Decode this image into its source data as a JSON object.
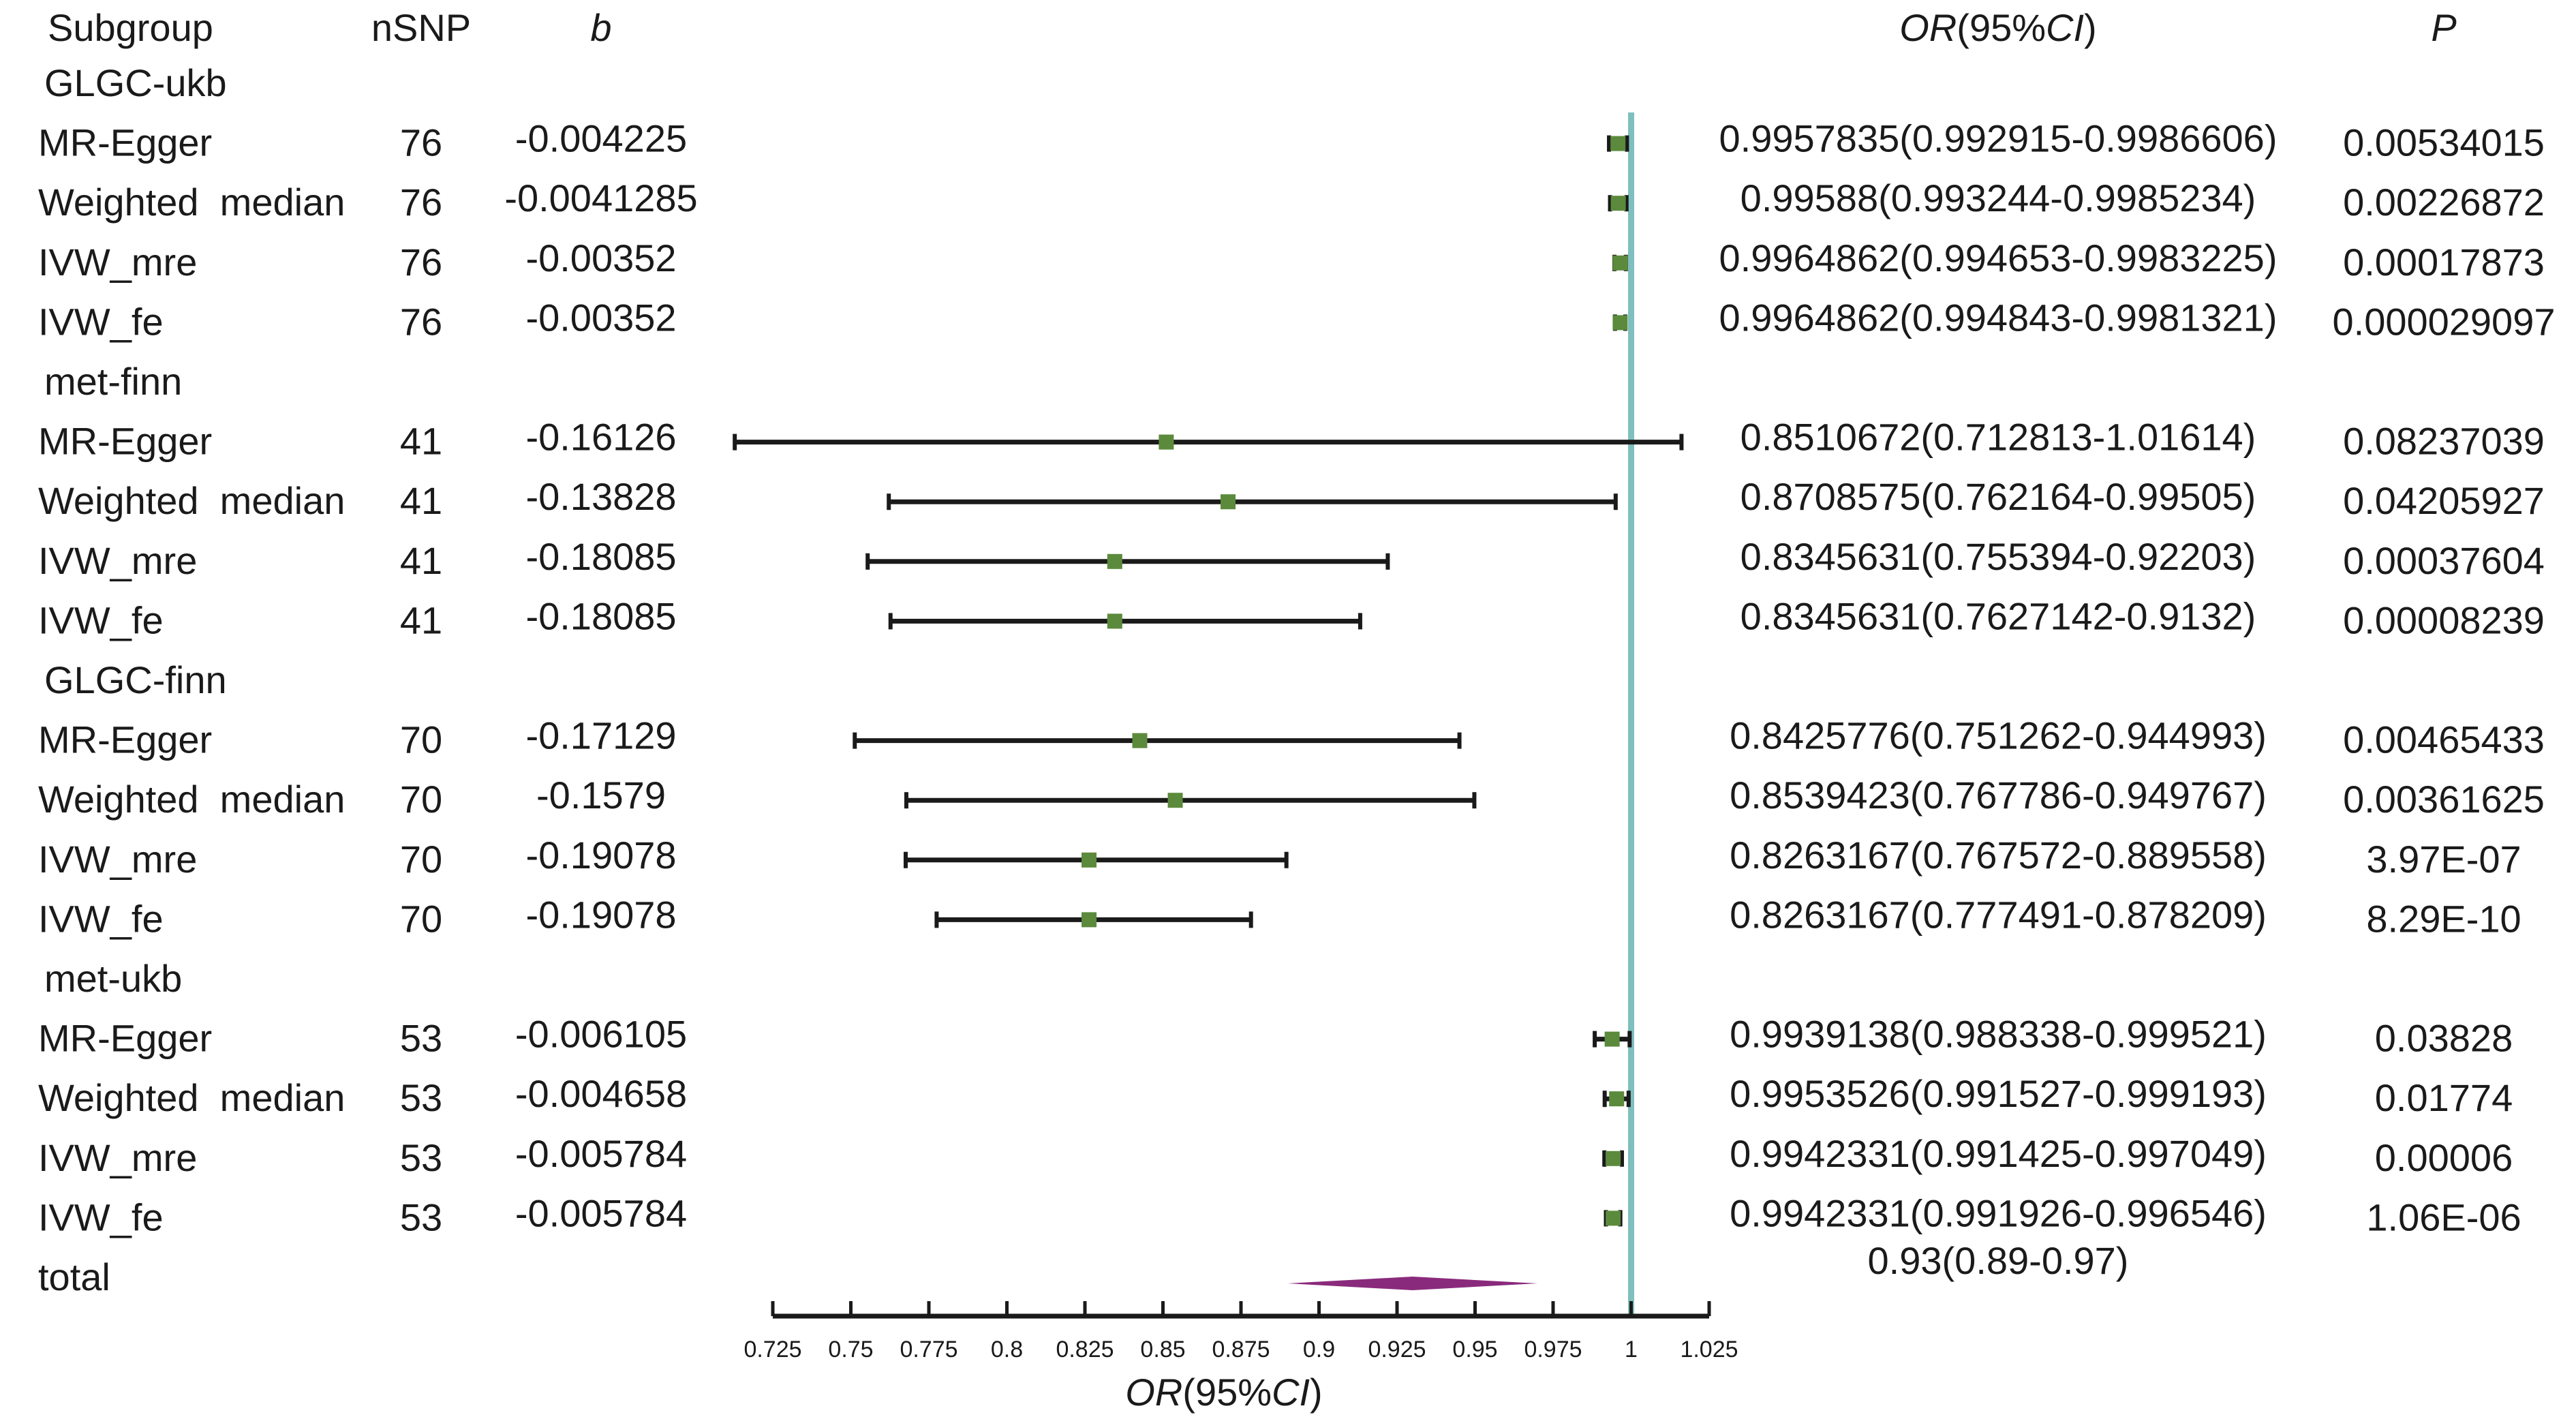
{
  "chart_data": {
    "type": "forest",
    "headers": {
      "subgroup": "Subgroup",
      "nsnp": "nSNP",
      "b": "b",
      "or_italic": "OR",
      "or_mid": "(95%",
      "ci_italic": "CI",
      "or_end": ")",
      "p": "P"
    },
    "xlabel": {
      "or_italic": "OR",
      "mid": "(95%",
      "ci_italic": "CI",
      "end": ")"
    },
    "xlim": [
      0.725,
      1.025
    ],
    "xticks": [
      "0.725",
      "0.75",
      "0.775",
      "0.8",
      "0.825",
      "0.85",
      "0.875",
      "0.9",
      "0.925",
      "0.95",
      "0.975",
      "1",
      "1.025"
    ],
    "reference_line": 1,
    "colors": {
      "point": "#5b8a3c",
      "ci": "#1a1a1a",
      "reference": "#7fbfbe",
      "diamond": "#8a2a7c"
    },
    "rows": [
      {
        "group": "GLGC-ukb"
      },
      {
        "label": "MR-Egger",
        "nsnp": "76",
        "b": "-0.004225",
        "or_text": "0.9957835(0.992915-0.9986606)",
        "p": "0.00534015",
        "or": 0.9957835,
        "lo": 0.992915,
        "hi": 0.9986606
      },
      {
        "label": "Weighted  median",
        "nsnp": "76",
        "b": "-0.0041285",
        "or_text": "0.99588(0.993244-0.9985234)",
        "p": "0.00226872",
        "or": 0.99588,
        "lo": 0.993244,
        "hi": 0.9985234
      },
      {
        "label": "IVW_mre",
        "nsnp": "76",
        "b": "-0.00352",
        "or_text": "0.9964862(0.994653-0.9983225)",
        "p": "0.00017873",
        "or": 0.9964862,
        "lo": 0.994653,
        "hi": 0.9983225
      },
      {
        "label": "IVW_fe",
        "nsnp": "76",
        "b": "-0.00352",
        "or_text": "0.9964862(0.994843-0.9981321)",
        "p": "0.000029097",
        "or": 0.9964862,
        "lo": 0.994843,
        "hi": 0.9981321
      },
      {
        "group": "met-finn"
      },
      {
        "label": "MR-Egger",
        "nsnp": "41",
        "b": "-0.16126",
        "or_text": "0.8510672(0.712813-1.01614)",
        "p": "0.08237039",
        "or": 0.8510672,
        "lo": 0.712813,
        "hi": 1.01614
      },
      {
        "label": "Weighted  median",
        "nsnp": "41",
        "b": "-0.13828",
        "or_text": "0.8708575(0.762164-0.99505)",
        "p": "0.04205927",
        "or": 0.8708575,
        "lo": 0.762164,
        "hi": 0.99505
      },
      {
        "label": "IVW_mre",
        "nsnp": "41",
        "b": "-0.18085",
        "or_text": "0.8345631(0.755394-0.92203)",
        "p": "0.00037604",
        "or": 0.8345631,
        "lo": 0.755394,
        "hi": 0.92203
      },
      {
        "label": "IVW_fe",
        "nsnp": "41",
        "b": "-0.18085",
        "or_text": "0.8345631(0.7627142-0.9132)",
        "p": "0.00008239",
        "or": 0.8345631,
        "lo": 0.7627142,
        "hi": 0.9132
      },
      {
        "group": "GLGC-finn"
      },
      {
        "label": "MR-Egger",
        "nsnp": "70",
        "b": "-0.17129",
        "or_text": "0.8425776(0.751262-0.944993)",
        "p": "0.00465433",
        "or": 0.8425776,
        "lo": 0.751262,
        "hi": 0.944993
      },
      {
        "label": "Weighted  median",
        "nsnp": "70",
        "b": "-0.1579",
        "or_text": "0.8539423(0.767786-0.949767)",
        "p": "0.00361625",
        "or": 0.8539423,
        "lo": 0.767786,
        "hi": 0.949767
      },
      {
        "label": "IVW_mre",
        "nsnp": "70",
        "b": "-0.19078",
        "or_text": "0.8263167(0.767572-0.889558)",
        "p": "3.97E-07",
        "or": 0.8263167,
        "lo": 0.767572,
        "hi": 0.889558
      },
      {
        "label": "IVW_fe",
        "nsnp": "70",
        "b": "-0.19078",
        "or_text": "0.8263167(0.777491-0.878209)",
        "p": "8.29E-10",
        "or": 0.8263167,
        "lo": 0.777491,
        "hi": 0.878209
      },
      {
        "group": "met-ukb"
      },
      {
        "label": "MR-Egger",
        "nsnp": "53",
        "b": "-0.006105",
        "or_text": "0.9939138(0.988338-0.999521)",
        "p": "0.03828",
        "or": 0.9939138,
        "lo": 0.988338,
        "hi": 0.999521
      },
      {
        "label": "Weighted  median",
        "nsnp": "53",
        "b": "-0.004658",
        "or_text": "0.9953526(0.991527-0.999193)",
        "p": "0.01774",
        "or": 0.9953526,
        "lo": 0.991527,
        "hi": 0.999193
      },
      {
        "label": "IVW_mre",
        "nsnp": "53",
        "b": "-0.005784",
        "or_text": "0.9942331(0.991425-0.997049)",
        "p": "0.00006",
        "or": 0.9942331,
        "lo": 0.991425,
        "hi": 0.997049
      },
      {
        "label": "IVW_fe",
        "nsnp": "53",
        "b": "-0.005784",
        "or_text": "0.9942331(0.991926-0.996546)",
        "p": "1.06E-06",
        "or": 0.9942331,
        "lo": 0.991926,
        "hi": 0.996546
      }
    ],
    "total": {
      "label": "total",
      "or_text": "0.93(0.89-0.97)",
      "or": 0.93,
      "lo": 0.89,
      "hi": 0.97
    }
  }
}
